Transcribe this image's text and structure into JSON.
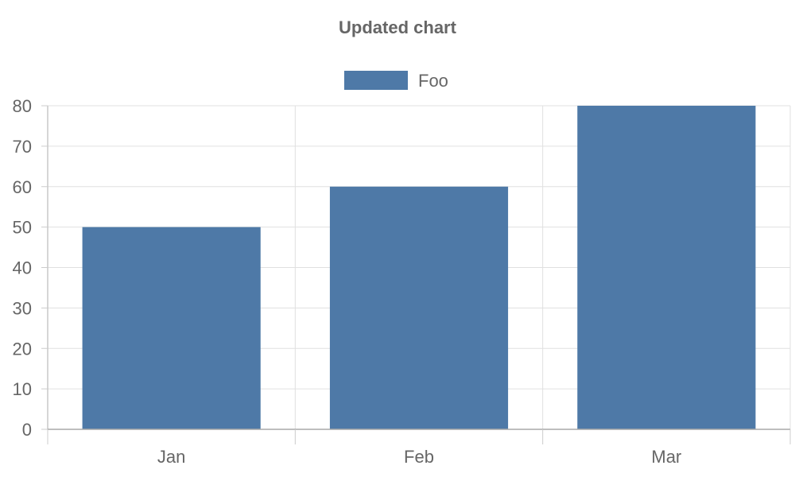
{
  "chart_data": {
    "type": "bar",
    "title": "Updated chart",
    "categories": [
      "Jan",
      "Feb",
      "Mar"
    ],
    "series": [
      {
        "name": "Foo",
        "values": [
          50,
          60,
          80
        ],
        "color": "#4e79a7"
      }
    ],
    "ylim": [
      0,
      80
    ],
    "yticks": [
      0,
      10,
      20,
      30,
      40,
      50,
      60,
      70,
      80
    ],
    "grid": true,
    "legend": "top"
  }
}
